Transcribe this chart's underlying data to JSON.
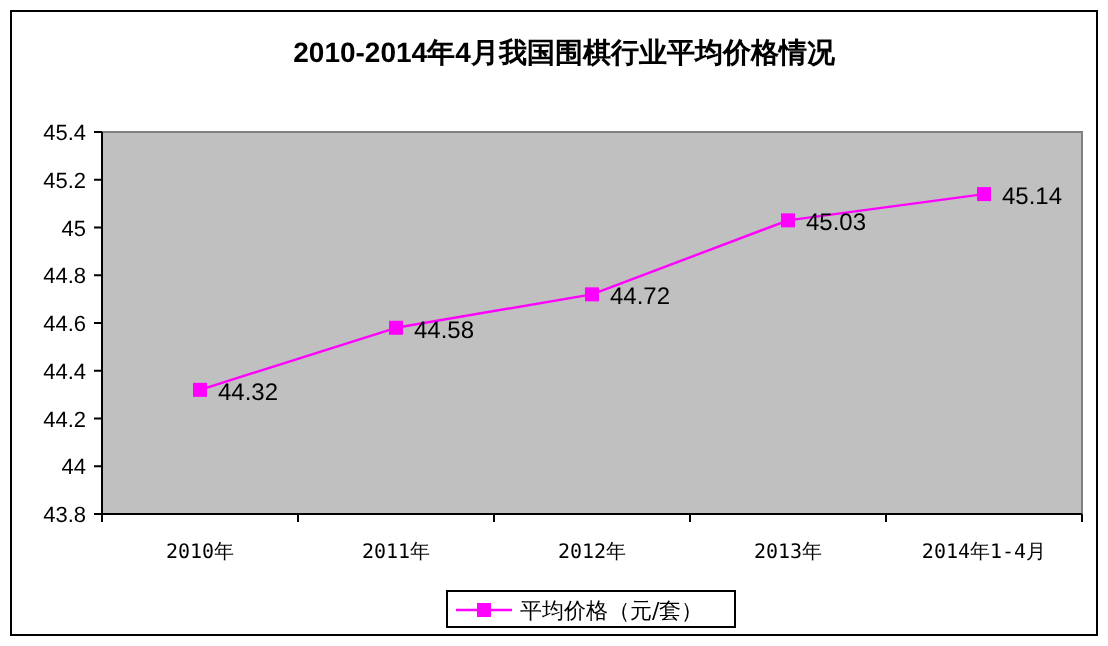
{
  "chart_data": {
    "type": "line",
    "title": "2010-2014年4月我国围棋行业平均价格情况",
    "categories": [
      "2010年",
      "2011年",
      "2012年",
      "2013年",
      "2014年1-4月"
    ],
    "series": [
      {
        "name": "平均价格（元/套）",
        "color": "#ff00ff",
        "values": [
          44.32,
          44.58,
          44.72,
          45.03,
          45.14
        ]
      }
    ],
    "ylim": [
      43.8,
      45.4
    ],
    "yticks": [
      43.8,
      44,
      44.2,
      44.4,
      44.6,
      44.8,
      45,
      45.2,
      45.4
    ],
    "data_labels": true,
    "marker": "square",
    "legend": "bottom",
    "grid": false
  }
}
